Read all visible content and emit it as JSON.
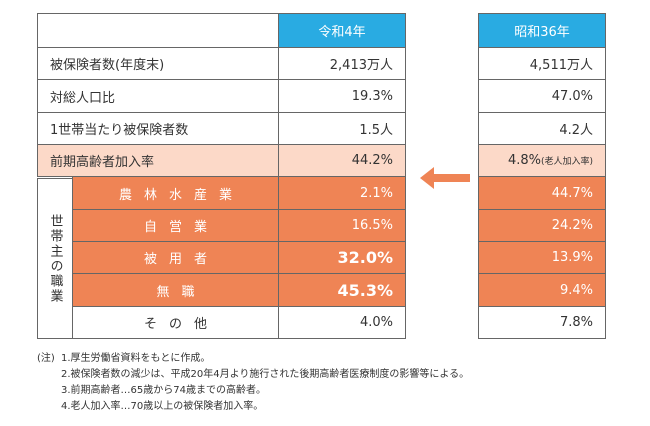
{
  "left_table": {
    "header": "令和4年",
    "group_label": "世帯主の職業",
    "rows": [
      {
        "label": "被保険者数(年度末)",
        "value": "2,413万人"
      },
      {
        "label": "対総人口比",
        "value": "19.3%"
      },
      {
        "label": "1世帯当たり被保険者数",
        "value": "1.5人"
      },
      {
        "label": "前期高齢者加入率",
        "value": "44.2%"
      },
      {
        "label": "農林水産業",
        "value": "2.1%"
      },
      {
        "label": "自営業",
        "value": "16.5%"
      },
      {
        "label": "被用者",
        "value": "32.0%"
      },
      {
        "label": "無職",
        "value": "45.3%"
      },
      {
        "label": "その他",
        "value": "4.0%"
      }
    ]
  },
  "right_table": {
    "header": "昭和36年",
    "rows": [
      {
        "value": "4,511万人"
      },
      {
        "value": "47.0%"
      },
      {
        "value": "4.2人"
      },
      {
        "value": "4.8%",
        "note": "(老人加入率)"
      },
      {
        "value": "44.7%"
      },
      {
        "value": "24.2%"
      },
      {
        "value": "13.9%"
      },
      {
        "value": "9.4%"
      },
      {
        "value": "7.8%"
      }
    ]
  },
  "notes": {
    "prefix": "(注)",
    "items": [
      "1.厚生労働省資料をもとに作成。",
      "2.被保険者数の減少は、平成20年4月より施行された後期高齢者医療制度の影響等による。",
      "3.前期高齢者…65歳から74歳までの高齢者。",
      "4.老人加入率…70歳以上の被保険者加入率。"
    ]
  }
}
